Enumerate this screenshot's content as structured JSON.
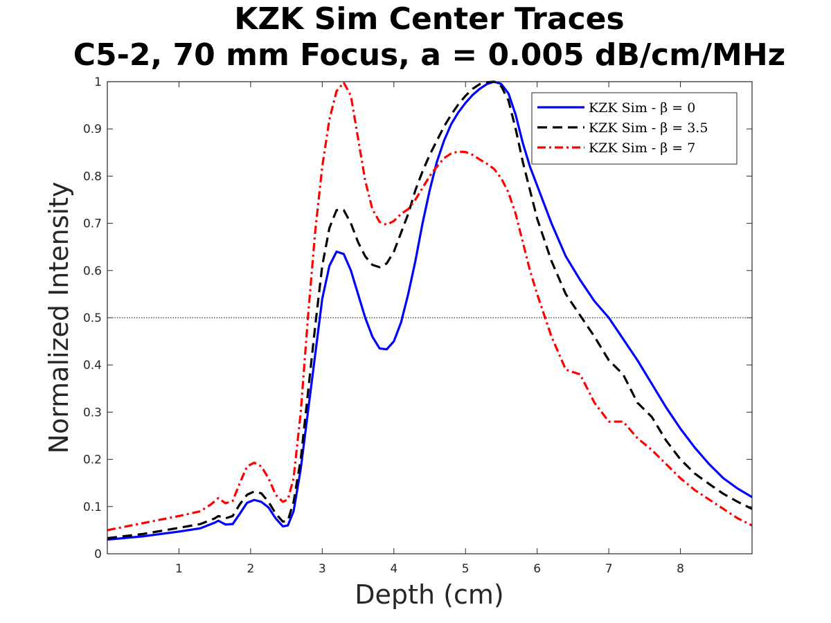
{
  "chart_data": {
    "type": "line",
    "title": [
      "KZK Sim Center Traces",
      "C5-2, 70 mm Focus, a = 0.005 dB/cm/MHz"
    ],
    "xlabel": "Depth (cm)",
    "ylabel": "Normalized Intensity",
    "xlim": [
      0,
      9
    ],
    "ylim": [
      0,
      1
    ],
    "x_ticks": [
      1,
      2,
      3,
      4,
      5,
      6,
      7,
      8
    ],
    "x_tick_labels": [
      "1",
      "2",
      "3",
      "4",
      "5",
      "6",
      "7",
      "8"
    ],
    "y_ticks": [
      0,
      0.1,
      0.2,
      0.3,
      0.4,
      0.5,
      0.6,
      0.7,
      0.8,
      0.9,
      1
    ],
    "y_tick_labels": [
      "0",
      "0.1",
      "0.2",
      "0.3",
      "0.4",
      "0.5",
      "0.6",
      "0.7",
      "0.8",
      "0.9",
      "1"
    ],
    "grid": false,
    "legend_position": "top-right",
    "reference_line": {
      "y": 0.5,
      "style": "dotted",
      "color": "#000000"
    },
    "series": [
      {
        "name": "KZK Sim - β = 0",
        "color": "#0000ff",
        "dash": "solid",
        "points": [
          [
            0,
            0.03
          ],
          [
            0.5,
            0.037
          ],
          [
            1.0,
            0.047
          ],
          [
            1.3,
            0.054
          ],
          [
            1.5,
            0.066
          ],
          [
            1.55,
            0.07
          ],
          [
            1.65,
            0.062
          ],
          [
            1.75,
            0.063
          ],
          [
            1.85,
            0.085
          ],
          [
            1.95,
            0.108
          ],
          [
            2.05,
            0.114
          ],
          [
            2.15,
            0.11
          ],
          [
            2.25,
            0.098
          ],
          [
            2.35,
            0.075
          ],
          [
            2.45,
            0.058
          ],
          [
            2.52,
            0.06
          ],
          [
            2.6,
            0.09
          ],
          [
            2.7,
            0.18
          ],
          [
            2.8,
            0.3
          ],
          [
            2.9,
            0.42
          ],
          [
            3.0,
            0.54
          ],
          [
            3.1,
            0.61
          ],
          [
            3.2,
            0.64
          ],
          [
            3.3,
            0.635
          ],
          [
            3.4,
            0.6
          ],
          [
            3.5,
            0.55
          ],
          [
            3.6,
            0.5
          ],
          [
            3.7,
            0.46
          ],
          [
            3.8,
            0.435
          ],
          [
            3.9,
            0.433
          ],
          [
            4.0,
            0.45
          ],
          [
            4.1,
            0.49
          ],
          [
            4.2,
            0.55
          ],
          [
            4.3,
            0.62
          ],
          [
            4.4,
            0.7
          ],
          [
            4.5,
            0.77
          ],
          [
            4.6,
            0.83
          ],
          [
            4.7,
            0.875
          ],
          [
            4.8,
            0.91
          ],
          [
            4.9,
            0.935
          ],
          [
            5.0,
            0.955
          ],
          [
            5.1,
            0.972
          ],
          [
            5.2,
            0.985
          ],
          [
            5.3,
            0.995
          ],
          [
            5.4,
            1.0
          ],
          [
            5.5,
            0.995
          ],
          [
            5.6,
            0.975
          ],
          [
            5.7,
            0.93
          ],
          [
            5.8,
            0.87
          ],
          [
            5.9,
            0.82
          ],
          [
            6.0,
            0.78
          ],
          [
            6.2,
            0.7
          ],
          [
            6.4,
            0.63
          ],
          [
            6.6,
            0.58
          ],
          [
            6.8,
            0.535
          ],
          [
            7.0,
            0.5
          ],
          [
            7.2,
            0.455
          ],
          [
            7.4,
            0.41
          ],
          [
            7.6,
            0.36
          ],
          [
            7.8,
            0.31
          ],
          [
            8.0,
            0.265
          ],
          [
            8.2,
            0.225
          ],
          [
            8.4,
            0.19
          ],
          [
            8.6,
            0.16
          ],
          [
            8.8,
            0.138
          ],
          [
            9.0,
            0.12
          ]
        ]
      },
      {
        "name": "KZK Sim - β = 3.5",
        "color": "#000000",
        "dash": "dashed",
        "points": [
          [
            0,
            0.033
          ],
          [
            0.5,
            0.042
          ],
          [
            1.0,
            0.055
          ],
          [
            1.3,
            0.063
          ],
          [
            1.5,
            0.075
          ],
          [
            1.55,
            0.08
          ],
          [
            1.65,
            0.075
          ],
          [
            1.75,
            0.08
          ],
          [
            1.85,
            0.105
          ],
          [
            1.95,
            0.125
          ],
          [
            2.05,
            0.132
          ],
          [
            2.15,
            0.128
          ],
          [
            2.25,
            0.11
          ],
          [
            2.35,
            0.085
          ],
          [
            2.45,
            0.068
          ],
          [
            2.52,
            0.07
          ],
          [
            2.6,
            0.11
          ],
          [
            2.7,
            0.2
          ],
          [
            2.8,
            0.34
          ],
          [
            2.9,
            0.48
          ],
          [
            3.0,
            0.61
          ],
          [
            3.1,
            0.69
          ],
          [
            3.2,
            0.728
          ],
          [
            3.3,
            0.728
          ],
          [
            3.4,
            0.7
          ],
          [
            3.5,
            0.66
          ],
          [
            3.6,
            0.63
          ],
          [
            3.7,
            0.612
          ],
          [
            3.8,
            0.607
          ],
          [
            3.9,
            0.615
          ],
          [
            4.0,
            0.64
          ],
          [
            4.1,
            0.68
          ],
          [
            4.2,
            0.72
          ],
          [
            4.3,
            0.77
          ],
          [
            4.4,
            0.81
          ],
          [
            4.5,
            0.845
          ],
          [
            4.6,
            0.875
          ],
          [
            4.7,
            0.905
          ],
          [
            4.8,
            0.93
          ],
          [
            4.9,
            0.952
          ],
          [
            5.0,
            0.97
          ],
          [
            5.1,
            0.985
          ],
          [
            5.2,
            0.995
          ],
          [
            5.3,
            0.999
          ],
          [
            5.4,
            1.0
          ],
          [
            5.5,
            0.99
          ],
          [
            5.6,
            0.96
          ],
          [
            5.7,
            0.9
          ],
          [
            5.8,
            0.83
          ],
          [
            5.9,
            0.77
          ],
          [
            6.0,
            0.71
          ],
          [
            6.2,
            0.62
          ],
          [
            6.4,
            0.55
          ],
          [
            6.6,
            0.505
          ],
          [
            6.8,
            0.46
          ],
          [
            7.0,
            0.41
          ],
          [
            7.2,
            0.38
          ],
          [
            7.4,
            0.32
          ],
          [
            7.6,
            0.29
          ],
          [
            7.8,
            0.24
          ],
          [
            8.0,
            0.2
          ],
          [
            8.2,
            0.17
          ],
          [
            8.4,
            0.148
          ],
          [
            8.6,
            0.127
          ],
          [
            8.8,
            0.11
          ],
          [
            9.0,
            0.095
          ]
        ]
      },
      {
        "name": "KZK Sim - β = 7",
        "color": "#ff0000",
        "dash": "dashdot",
        "points": [
          [
            0,
            0.05
          ],
          [
            0.5,
            0.065
          ],
          [
            1.0,
            0.08
          ],
          [
            1.3,
            0.09
          ],
          [
            1.45,
            0.105
          ],
          [
            1.55,
            0.118
          ],
          [
            1.65,
            0.107
          ],
          [
            1.75,
            0.112
          ],
          [
            1.85,
            0.15
          ],
          [
            1.95,
            0.185
          ],
          [
            2.05,
            0.193
          ],
          [
            2.15,
            0.185
          ],
          [
            2.25,
            0.16
          ],
          [
            2.35,
            0.125
          ],
          [
            2.45,
            0.11
          ],
          [
            2.52,
            0.115
          ],
          [
            2.6,
            0.16
          ],
          [
            2.7,
            0.3
          ],
          [
            2.8,
            0.5
          ],
          [
            2.9,
            0.68
          ],
          [
            3.0,
            0.82
          ],
          [
            3.1,
            0.92
          ],
          [
            3.2,
            0.98
          ],
          [
            3.3,
            0.998
          ],
          [
            3.4,
            0.97
          ],
          [
            3.5,
            0.88
          ],
          [
            3.6,
            0.79
          ],
          [
            3.7,
            0.73
          ],
          [
            3.8,
            0.703
          ],
          [
            3.9,
            0.697
          ],
          [
            4.0,
            0.705
          ],
          [
            4.1,
            0.72
          ],
          [
            4.2,
            0.73
          ],
          [
            4.3,
            0.75
          ],
          [
            4.4,
            0.775
          ],
          [
            4.5,
            0.8
          ],
          [
            4.6,
            0.82
          ],
          [
            4.7,
            0.838
          ],
          [
            4.8,
            0.848
          ],
          [
            4.9,
            0.852
          ],
          [
            5.0,
            0.851
          ],
          [
            5.1,
            0.845
          ],
          [
            5.2,
            0.835
          ],
          [
            5.3,
            0.826
          ],
          [
            5.4,
            0.815
          ],
          [
            5.5,
            0.795
          ],
          [
            5.6,
            0.765
          ],
          [
            5.7,
            0.72
          ],
          [
            5.8,
            0.66
          ],
          [
            5.9,
            0.6
          ],
          [
            6.0,
            0.55
          ],
          [
            6.2,
            0.46
          ],
          [
            6.4,
            0.39
          ],
          [
            6.6,
            0.38
          ],
          [
            6.8,
            0.32
          ],
          [
            7.0,
            0.28
          ],
          [
            7.2,
            0.28
          ],
          [
            7.4,
            0.245
          ],
          [
            7.6,
            0.22
          ],
          [
            7.8,
            0.19
          ],
          [
            8.0,
            0.16
          ],
          [
            8.2,
            0.135
          ],
          [
            8.4,
            0.115
          ],
          [
            8.6,
            0.095
          ],
          [
            8.8,
            0.075
          ],
          [
            9.0,
            0.06
          ]
        ]
      }
    ]
  }
}
